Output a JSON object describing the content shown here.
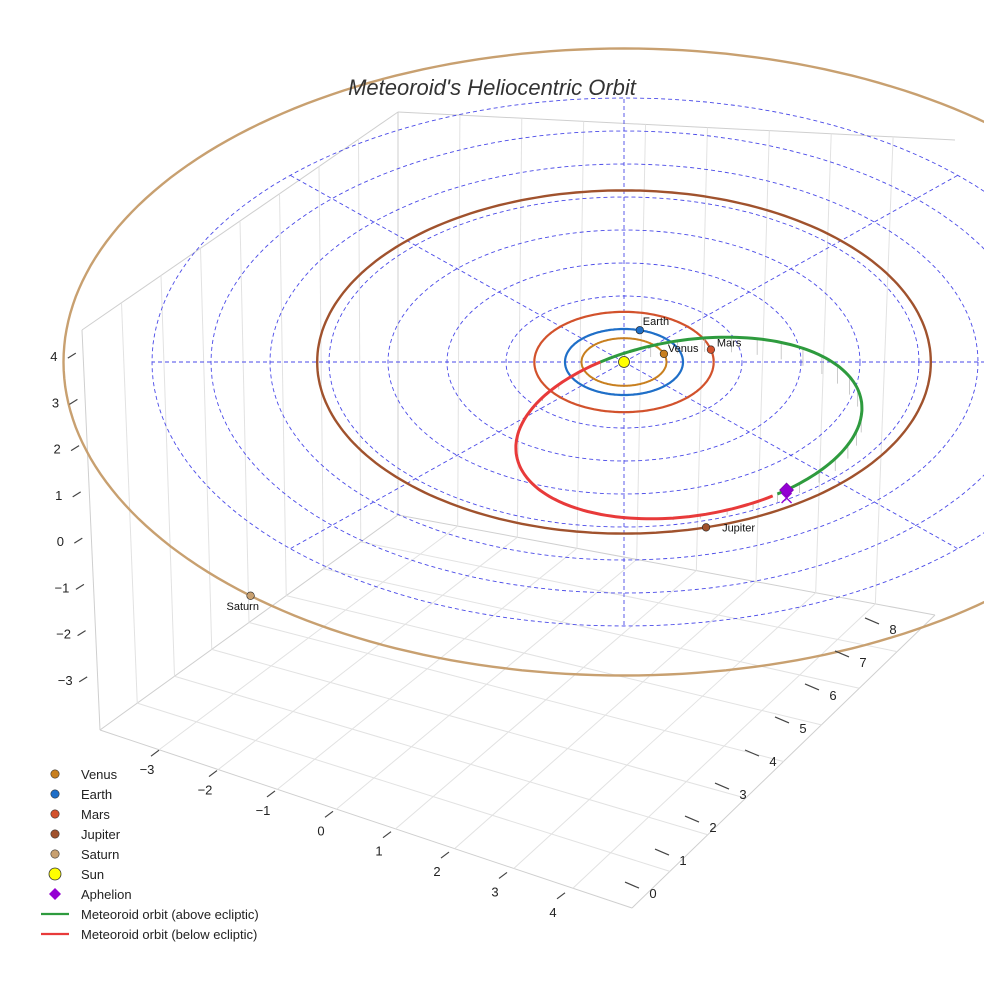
{
  "chart_data": {
    "type": "scatter",
    "title": "Meteoroid's Heliocentric Orbit",
    "projection": "3d",
    "axes": {
      "x": {
        "ticks": [
          -3,
          -2,
          -1,
          0,
          1,
          2,
          3,
          4
        ],
        "range": [
          -3.5,
          4.5
        ]
      },
      "y": {
        "ticks": [
          0,
          1,
          2,
          3,
          4,
          5,
          6,
          7,
          8
        ],
        "range": [
          -0.3,
          8.3
        ]
      },
      "z": {
        "ticks": [
          -3,
          -2,
          -1,
          0,
          1,
          2,
          3,
          4
        ],
        "range": [
          -3.5,
          4.5
        ]
      }
    },
    "grid": true,
    "ecliptic_grid": {
      "rings_au": [
        1,
        2,
        3,
        4,
        5,
        6,
        7,
        8
      ],
      "radials": 8,
      "color": "#4a4ae8"
    },
    "planets": [
      {
        "name": "Venus",
        "orbit_au": 0.72,
        "color": "#c87f1e",
        "label": "Venus"
      },
      {
        "name": "Earth",
        "orbit_au": 1.0,
        "color": "#1f6fc8",
        "label": "Earth"
      },
      {
        "name": "Mars",
        "orbit_au": 1.52,
        "color": "#d2522c",
        "label": "Mars"
      },
      {
        "name": "Jupiter",
        "orbit_au": 5.2,
        "color": "#a0522d",
        "label": "Jupiter"
      },
      {
        "name": "Saturn",
        "orbit_au": 9.5,
        "color": "#c8a070",
        "label": "Saturn"
      }
    ],
    "sun": {
      "name": "Sun",
      "color": "#ffff00"
    },
    "aphelion": {
      "name": "Aphelion",
      "color": "#9400d3"
    },
    "meteoroid": {
      "above_name": "Meteoroid orbit (above ecliptic)",
      "below_name": "Meteoroid orbit (below ecliptic)",
      "above_color": "#2e9b3e",
      "below_color": "#e83a3a"
    },
    "legend": {
      "position": "bottom-left",
      "entries": [
        {
          "label": "Venus",
          "marker": "circle",
          "color": "#c87f1e"
        },
        {
          "label": "Earth",
          "marker": "circle",
          "color": "#1f6fc8"
        },
        {
          "label": "Mars",
          "marker": "circle",
          "color": "#d2522c"
        },
        {
          "label": "Jupiter",
          "marker": "circle",
          "color": "#a0522d"
        },
        {
          "label": "Saturn",
          "marker": "circle",
          "color": "#c8a070"
        },
        {
          "label": "Sun",
          "marker": "circle-big",
          "color": "#ffff00"
        },
        {
          "label": "Aphelion",
          "marker": "diamond",
          "color": "#9400d3"
        },
        {
          "label": "Meteoroid orbit (above ecliptic)",
          "marker": "line",
          "color": "#2e9b3e"
        },
        {
          "label": "Meteoroid orbit (below ecliptic)",
          "marker": "line",
          "color": "#e83a3a"
        }
      ]
    }
  }
}
